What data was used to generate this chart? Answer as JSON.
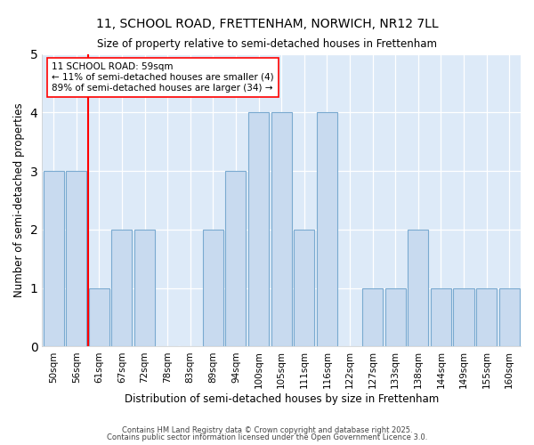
{
  "title1": "11, SCHOOL ROAD, FRETTENHAM, NORWICH, NR12 7LL",
  "title2": "Size of property relative to semi-detached houses in Frettenham",
  "xlabel": "Distribution of semi-detached houses by size in Frettenham",
  "ylabel": "Number of semi-detached properties",
  "categories": [
    "50sqm",
    "56sqm",
    "61sqm",
    "67sqm",
    "72sqm",
    "78sqm",
    "83sqm",
    "89sqm",
    "94sqm",
    "100sqm",
    "105sqm",
    "111sqm",
    "116sqm",
    "122sqm",
    "127sqm",
    "133sqm",
    "138sqm",
    "144sqm",
    "149sqm",
    "155sqm",
    "160sqm"
  ],
  "values": [
    3,
    3,
    1,
    2,
    2,
    0,
    0,
    2,
    3,
    4,
    4,
    2,
    4,
    0,
    1,
    1,
    2,
    1,
    1,
    1,
    1
  ],
  "bar_color": "#c8daef",
  "bar_edge_color": "#7aaad0",
  "plot_bg_color": "#ddeaf8",
  "fig_bg_color": "#ffffff",
  "red_line_x": 1.5,
  "annotation_text_line1": "11 SCHOOL ROAD: 59sqm",
  "annotation_text_line2": "← 11% of semi-detached houses are smaller (4)",
  "annotation_text_line3": "89% of semi-detached houses are larger (34) →",
  "ylim": [
    0,
    5
  ],
  "yticks": [
    0,
    1,
    2,
    3,
    4,
    5
  ],
  "footnote1": "Contains HM Land Registry data © Crown copyright and database right 2025.",
  "footnote2": "Contains public sector information licensed under the Open Government Licence 3.0."
}
